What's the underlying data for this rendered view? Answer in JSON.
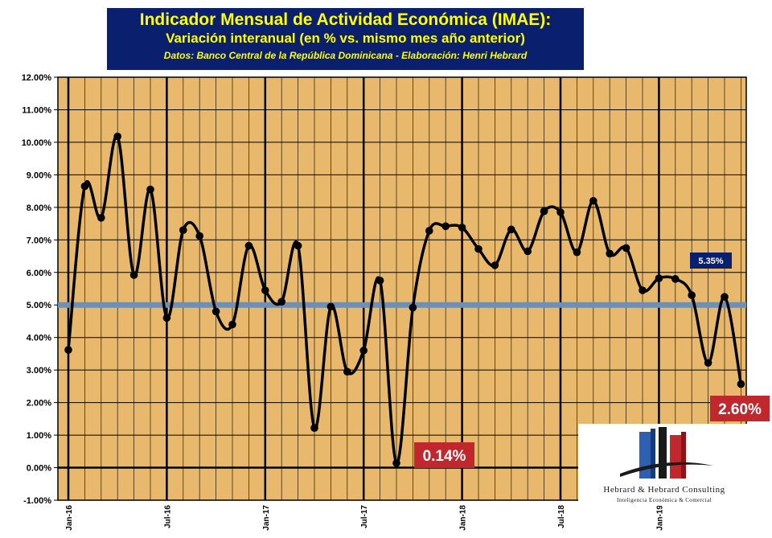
{
  "title": {
    "line1": "Indicador Mensual de Actividad Económica (IMAE):",
    "line2": "Variación  interanual   (en % vs. mismo mes año anterior)",
    "line3": "Datos:  Banco Central de la República Dominicana -  Elaboración: Henri Hebrard"
  },
  "logo": {
    "name": "Hebrard & Hebrard Consulting",
    "tagline": "Inteligencia Económica & Comercial"
  },
  "colors": {
    "plot_background": "#e8b96c",
    "title_background": "#0a1f6e",
    "title_text": "#ffff00",
    "reference_line": "#6f8fb4",
    "series_line": "#000000",
    "callout_red": "#c0282d",
    "callout_navy": "#0a1f6e"
  },
  "chart_data": {
    "type": "line",
    "title": "Indicador Mensual de Actividad Económica (IMAE):",
    "subtitle": "Variación  interanual   (en % vs. mismo mes año anterior)",
    "y_unit": "%",
    "ylim": [
      -1.0,
      12.0
    ],
    "ytick_step": 1.0,
    "yticks": [
      "-1.00%",
      "0.00%",
      "1.00%",
      "2.00%",
      "3.00%",
      "4.00%",
      "5.00%",
      "6.00%",
      "7.00%",
      "8.00%",
      "9.00%",
      "10.00%",
      "11.00%",
      "12.00%"
    ],
    "xtick_labels": [
      "Jan-16",
      "Jul-16",
      "Jan-17",
      "Jul-17",
      "Jan-18",
      "Jul-18",
      "Jan-19"
    ],
    "grid": true,
    "x": [
      "Jan-16",
      "Feb-16",
      "Mar-16",
      "Apr-16",
      "May-16",
      "Jun-16",
      "Jul-16",
      "Aug-16",
      "Sep-16",
      "Oct-16",
      "Nov-16",
      "Dec-16",
      "Jan-17",
      "Feb-17",
      "Mar-17",
      "Apr-17",
      "May-17",
      "Jun-17",
      "Jul-17",
      "Aug-17",
      "Sep-17",
      "Oct-17",
      "Nov-17",
      "Dec-17",
      "Jan-18",
      "Feb-18",
      "Mar-18",
      "Apr-18",
      "May-18",
      "Jun-18",
      "Jul-18",
      "Aug-18",
      "Sep-18",
      "Oct-18",
      "Nov-18",
      "Dec-18",
      "Jan-19",
      "Feb-19",
      "Mar-19",
      "Apr-19",
      "May-19",
      "Jun-19"
    ],
    "series": [
      {
        "values": [
          3.62,
          8.65,
          7.68,
          10.18,
          5.92,
          8.55,
          4.6,
          7.3,
          7.12,
          4.8,
          4.4,
          6.82,
          5.45,
          5.1,
          6.82,
          1.22,
          4.95,
          2.95,
          3.6,
          5.75,
          0.14,
          4.92,
          7.28,
          7.42,
          7.38,
          6.72,
          6.22,
          7.32,
          6.65,
          7.88,
          7.85,
          6.62,
          8.2,
          6.58,
          6.75,
          5.45,
          5.82,
          5.8,
          5.3,
          3.22,
          5.25,
          2.57
        ]
      }
    ],
    "reference_line": {
      "value": 5.0
    },
    "annotations": [
      {
        "text": "0.14%",
        "style": "red"
      },
      {
        "text": "2.60%",
        "style": "red"
      },
      {
        "text": "5.35%",
        "style": "navy"
      }
    ]
  }
}
